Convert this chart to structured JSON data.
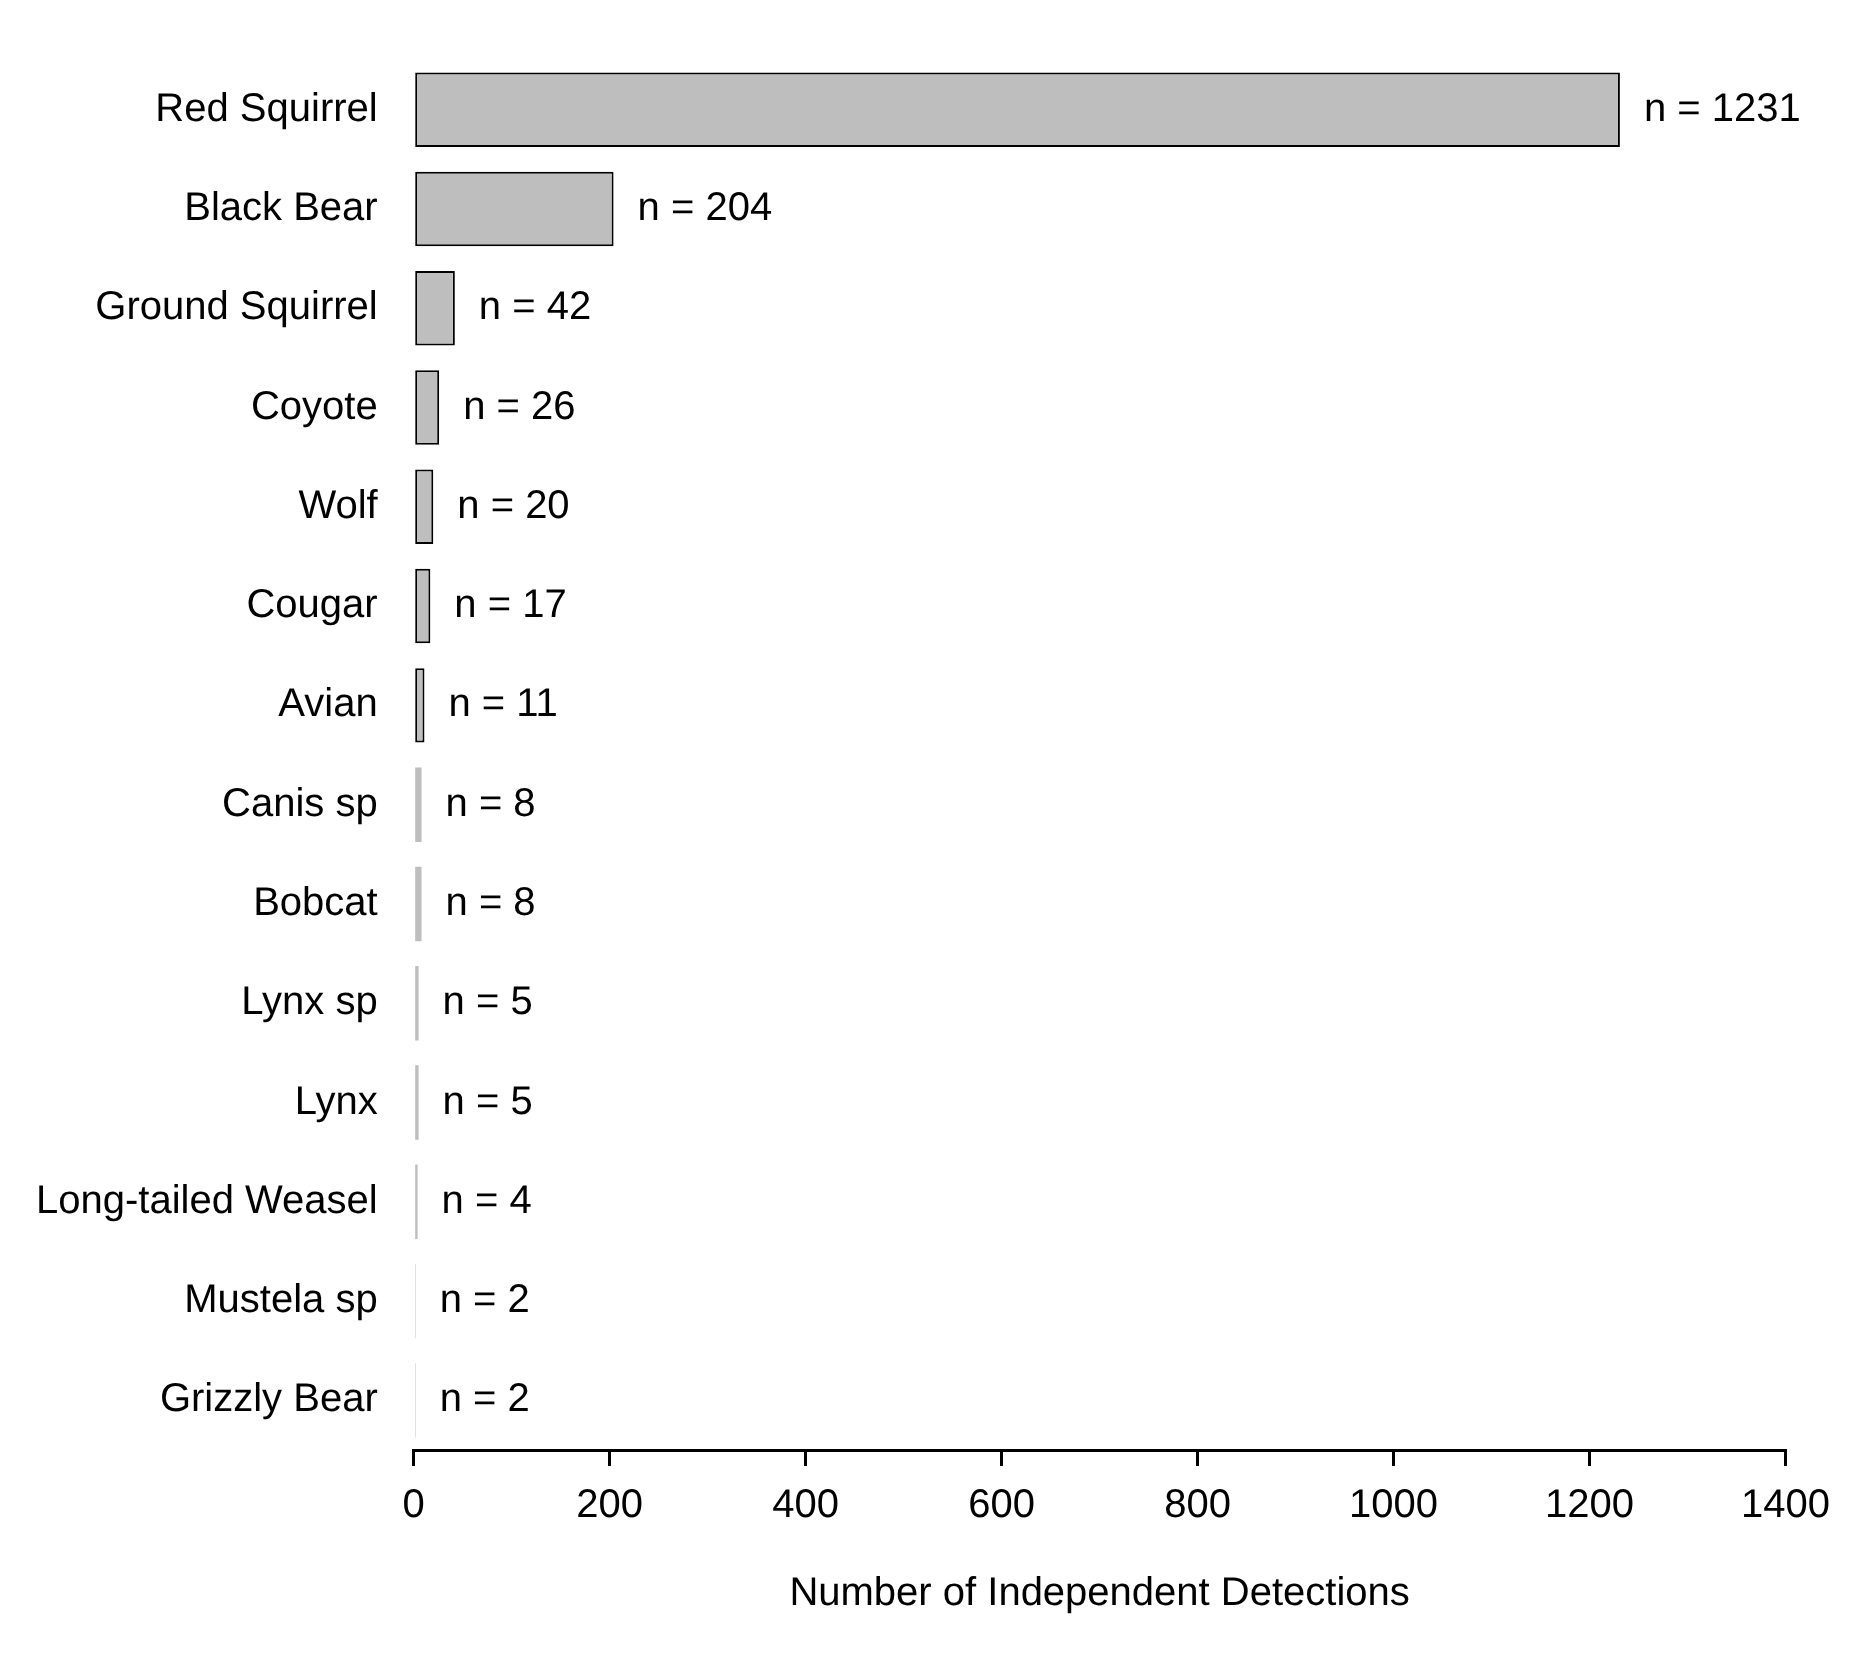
{
  "chart_data": {
    "type": "bar",
    "orientation": "horizontal",
    "xlabel": "Number of Independent Detections",
    "categories": [
      "Red Squirrel",
      "Black Bear",
      "Ground Squirrel",
      "Coyote",
      "Wolf",
      "Cougar",
      "Avian",
      "Canis sp",
      "Bobcat",
      "Lynx sp",
      "Lynx",
      "Long-tailed Weasel",
      "Mustela sp",
      "Grizzly Bear"
    ],
    "values": [
      1231,
      204,
      42,
      26,
      20,
      17,
      11,
      8,
      8,
      5,
      5,
      4,
      2,
      2
    ],
    "value_labels": [
      "n = 1231",
      "n = 204",
      "n = 42",
      "n = 26",
      "n = 20",
      "n = 17",
      "n = 11",
      "n = 8",
      "n = 8",
      "n = 5",
      "n = 5",
      "n = 4",
      "n = 2",
      "n = 2"
    ],
    "color": "#bebebe",
    "xlim": [
      0,
      1400
    ],
    "xticks": [
      0,
      200,
      400,
      600,
      800,
      1000,
      1200,
      1400
    ],
    "grid": false,
    "legend": false
  }
}
